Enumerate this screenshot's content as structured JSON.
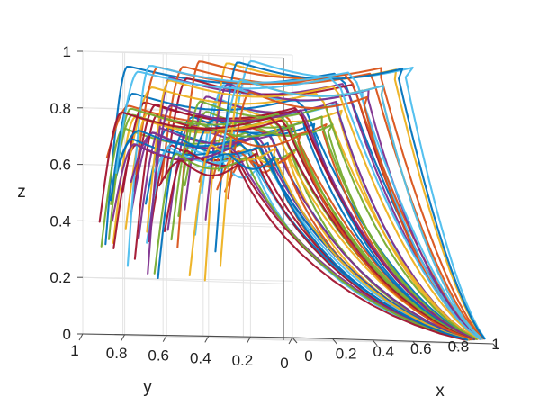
{
  "chart_data": {
    "type": "line",
    "projection": "3d",
    "title": "",
    "xlabel": "x",
    "ylabel": "y",
    "zlabel": "z",
    "xlim": [
      0,
      1
    ],
    "ylim": [
      0,
      1
    ],
    "zlim": [
      0,
      1
    ],
    "grid": true,
    "x_ticks": [
      "0",
      "0.2",
      "0.4",
      "0.6",
      "0.8",
      "1"
    ],
    "y_ticks": [
      "1",
      "0.8",
      "0.6",
      "0.4",
      "0.2",
      "0"
    ],
    "z_ticks": [
      "0",
      "0.2",
      "0.4",
      "0.6",
      "0.8",
      "1"
    ],
    "palette": [
      "#0072BD",
      "#D95319",
      "#EDB120",
      "#7E2F8E",
      "#77AC30",
      "#4DBEEE",
      "#A2142F"
    ],
    "series_count": 64,
    "notes_visible": "Trajectories circulate from the y=1 face over the top toward x=1 and descend, converging near (x=1, y=0, z=0)."
  }
}
